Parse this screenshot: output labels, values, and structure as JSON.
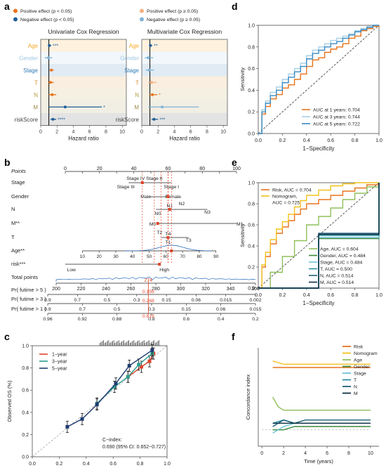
{
  "panel_letters": {
    "a": "a",
    "b": "b",
    "c": "c",
    "d": "d",
    "e": "e",
    "f": "f"
  },
  "colors": {
    "pos_sig": "#e8731c",
    "pos_ns": "#f4b183",
    "neg_sig": "#1f5f99",
    "neg_ns": "#7fb3d5",
    "age": "#f5a623",
    "gender": "#9ec7e0",
    "stage": "#2c7bb6",
    "t": "#d98c2b",
    "n": "#b59a3a",
    "m": "#a08a4a",
    "risk": "#5a5a5a",
    "red": "#e0452b",
    "teal": "#2a9d8f",
    "navy": "#1f3b73"
  },
  "panel_a": {
    "legend": [
      {
        "label": "Positive effect (p < 0.05)",
        "color": "#e8731c"
      },
      {
        "label": "Positive effect (p ≥ 0.05)",
        "color": "#f4b183"
      },
      {
        "label": "Negative effect (p < 0.05)",
        "color": "#1f5f99"
      },
      {
        "label": "Negative effect (p ≥ 0.05)",
        "color": "#7fb3d5"
      }
    ],
    "row_labels": [
      "Age",
      "Gender",
      "Stage",
      "T",
      "N",
      "M",
      "riskScore"
    ],
    "row_colors": [
      "#f5a623",
      "#9ec7e0",
      "#2c7bb6",
      "#d98c2b",
      "#b59a3a",
      "#a08a4a",
      "#444444"
    ],
    "uni_title": "Univariate Cox Regression",
    "multi_title": "Multivariate Cox Regression",
    "xlabel": "Hazard ratio",
    "xticks": [
      "0",
      "2",
      "4",
      "6",
      "8",
      "10"
    ],
    "uni": [
      {
        "hr": 1.05,
        "lo": 0.9,
        "hi": 1.3,
        "stars": "***",
        "color": "#1f5f99"
      },
      {
        "hr": 0.95,
        "lo": 0.5,
        "hi": 1.4,
        "stars": "",
        "color": "#7fb3d5"
      },
      {
        "hr": 1.3,
        "lo": 1.1,
        "hi": 1.6,
        "stars": "",
        "color": "#e8731c"
      },
      {
        "hr": 1.2,
        "lo": 0.9,
        "hi": 1.6,
        "stars": "",
        "color": "#e8731c"
      },
      {
        "hr": 1.4,
        "lo": 1.0,
        "hi": 1.9,
        "stars": "",
        "color": "#e8731c"
      },
      {
        "hr": 3.0,
        "lo": 1.0,
        "hi": 7.5,
        "stars": "*",
        "color": "#1f5f99"
      },
      {
        "hr": 1.5,
        "lo": 1.2,
        "hi": 1.9,
        "stars": "****",
        "color": "#1f5f99"
      }
    ],
    "multi": [
      {
        "hr": 1.05,
        "lo": 0.9,
        "hi": 1.3,
        "stars": "**",
        "color": "#1f5f99"
      },
      {
        "hr": 0.8,
        "lo": 0.4,
        "hi": 1.4,
        "stars": "",
        "color": "#7fb3d5"
      },
      {
        "hr": 0.9,
        "lo": 0.5,
        "hi": 1.5,
        "stars": "",
        "color": "#7fb3d5"
      },
      {
        "hr": 1.2,
        "lo": 0.8,
        "hi": 1.8,
        "stars": "",
        "color": "#f4b183"
      },
      {
        "hr": 1.3,
        "lo": 0.9,
        "hi": 1.9,
        "stars": "*",
        "color": "#e8731c"
      },
      {
        "hr": 2.5,
        "lo": 0.8,
        "hi": 7.0,
        "stars": "",
        "color": "#7fb3d5"
      },
      {
        "hr": 1.5,
        "lo": 1.2,
        "hi": 2.0,
        "stars": "***",
        "color": "#1f5f99"
      }
    ]
  },
  "panel_b": {
    "row_labels": [
      "Points",
      "Stage",
      "Gender",
      "N",
      "M**",
      "T",
      "Age**",
      "risk***",
      "Total points",
      "Pr( futime > 5 )",
      "Pr( futime > 3 )",
      "Pr( futime > 1 )"
    ],
    "points_ticks": [
      "0",
      "10",
      "20",
      "30",
      "40",
      "50",
      "60",
      "70",
      "80",
      "90",
      "100"
    ],
    "stage_labels": [
      "Stage IV",
      "Stage III",
      "Stage II",
      "Stage I"
    ],
    "gender_labels": [
      "Male",
      "Female"
    ],
    "n_labels": [
      "N0",
      "N1",
      "N2",
      "N3"
    ],
    "m_labels": [
      "M0",
      "M1"
    ],
    "t_labels": [
      "T2",
      "T4",
      "T1",
      "T3"
    ],
    "age_ticks": [
      "10",
      "20",
      "30",
      "40",
      "50",
      "60",
      "70",
      "80",
      "90"
    ],
    "risk_labels": [
      "Low",
      "High"
    ],
    "total_ticks": [
      "200",
      "220",
      "240",
      "260",
      "280",
      "300",
      "320",
      "340",
      "360"
    ],
    "total_value": "274",
    "pr5_ticks": [
      "0.9",
      "0.7",
      "0.5",
      "0.3",
      "0.15",
      "0.06",
      "0.015",
      "0.002"
    ],
    "pr3_ticks": [
      "0.9",
      "0.7",
      "0.5",
      "0.3",
      "0.15",
      "0.06",
      "0.015"
    ],
    "pr1_ticks": [
      "0.96",
      "0.92",
      "0.88",
      "0.8",
      "0.6",
      "0.4",
      "0.2"
    ],
    "pr_values": [
      "0.156",
      "0.268",
      "0.619"
    ]
  },
  "panel_c": {
    "chart_data": {
      "type": "line",
      "xlabel": "Nomogram−predicted OS (%)",
      "ylabel": "Observed OS (%)",
      "xlim": [
        0,
        1
      ],
      "ylim": [
        0,
        1
      ],
      "series": [
        {
          "name": "1−year",
          "color": "#e0452b",
          "x": [
            0.71,
            0.81,
            0.87,
            0.9
          ],
          "y": [
            0.72,
            0.81,
            0.86,
            0.93
          ]
        },
        {
          "name": "3−year",
          "color": "#2a9d8f",
          "x": [
            0.48,
            0.61,
            0.71,
            0.79,
            0.89
          ],
          "y": [
            0.48,
            0.63,
            0.72,
            0.83,
            0.93
          ]
        },
        {
          "name": "5−year",
          "color": "#1f3b73",
          "x": [
            0.26,
            0.37,
            0.48,
            0.62,
            0.72,
            0.89
          ],
          "y": [
            0.27,
            0.34,
            0.47,
            0.66,
            0.82,
            0.96
          ]
        }
      ],
      "annotation_line1": "C−index:",
      "annotation_line2": "0.690 (95% CI: 0.652−0.727)"
    }
  },
  "panel_d": {
    "chart_data": {
      "type": "line",
      "xlabel": "1−Specificity",
      "ylabel": "Sensitivity",
      "xlim": [
        0,
        1
      ],
      "ylim": [
        0,
        1
      ],
      "legend": [
        {
          "label": "AUC at 1 years: 0.704",
          "color": "#e8731c"
        },
        {
          "label": "AUC at 3 years: 0.744",
          "color": "#a6cfe6"
        },
        {
          "label": "AUC at 5 years: 0.722",
          "color": "#3b8bc2"
        }
      ],
      "series": [
        {
          "name": "AUC at 1 years: 0.704",
          "color": "#e8731c",
          "x": [
            0,
            0.03,
            0.06,
            0.1,
            0.15,
            0.2,
            0.25,
            0.3,
            0.35,
            0.4,
            0.45,
            0.5,
            0.55,
            0.6,
            0.65,
            0.7,
            0.75,
            0.8,
            0.85,
            0.9,
            0.95,
            1
          ],
          "y": [
            0,
            0.18,
            0.25,
            0.32,
            0.36,
            0.42,
            0.45,
            0.5,
            0.55,
            0.62,
            0.68,
            0.7,
            0.75,
            0.78,
            0.8,
            0.83,
            0.88,
            0.9,
            0.95,
            0.97,
            0.99,
            1
          ]
        },
        {
          "name": "AUC at 3 years: 0.744",
          "color": "#a6cfe6",
          "x": [
            0,
            0.03,
            0.06,
            0.1,
            0.15,
            0.2,
            0.25,
            0.3,
            0.35,
            0.4,
            0.45,
            0.5,
            0.55,
            0.6,
            0.65,
            0.7,
            0.75,
            0.8,
            0.85,
            0.9,
            0.95,
            1
          ],
          "y": [
            0,
            0.22,
            0.3,
            0.38,
            0.43,
            0.5,
            0.55,
            0.6,
            0.65,
            0.72,
            0.77,
            0.8,
            0.83,
            0.86,
            0.88,
            0.9,
            0.92,
            0.95,
            0.97,
            0.99,
            1,
            1
          ]
        },
        {
          "name": "AUC at 5 years: 0.722",
          "color": "#3b8bc2",
          "x": [
            0,
            0.03,
            0.06,
            0.1,
            0.15,
            0.2,
            0.25,
            0.3,
            0.35,
            0.4,
            0.45,
            0.5,
            0.55,
            0.6,
            0.65,
            0.7,
            0.75,
            0.8,
            0.85,
            0.9,
            0.95,
            1
          ],
          "y": [
            0,
            0.2,
            0.28,
            0.35,
            0.4,
            0.47,
            0.52,
            0.57,
            0.62,
            0.69,
            0.74,
            0.77,
            0.8,
            0.83,
            0.85,
            0.88,
            0.91,
            0.94,
            0.96,
            0.98,
            1,
            1
          ]
        }
      ]
    }
  },
  "panel_e": {
    "chart_data": {
      "type": "line",
      "xlabel": "1−Specificity",
      "ylabel": "Sensitivity",
      "xlim": [
        0,
        1
      ],
      "ylim": [
        0,
        1
      ],
      "legend_top": [
        {
          "label": "Risk, AUC = 0.704",
          "color": "#e8731c"
        },
        {
          "label": "Nomogram,",
          "color": "#f2c11d"
        },
        {
          "label": "AUC = 0.725",
          "color": ""
        }
      ],
      "legend_bottom": [
        {
          "label": "Age, AUC = 0.604",
          "color": "#8fbf5a"
        },
        {
          "label": "Gender, AUC = 0.484",
          "color": "#3d8b3d"
        },
        {
          "label": "Stage, AUC = 0.484",
          "color": "#6cc3d5"
        },
        {
          "label": "T, AUC = 0.500",
          "color": "#2a8fa6"
        },
        {
          "label": "N, AUC = 0.514",
          "color": "#1f5f78"
        },
        {
          "label": "M, AUC = 0.514",
          "color": "#0e2f44"
        }
      ],
      "series": [
        {
          "name": "Risk",
          "color": "#e8731c",
          "x": [
            0,
            0.03,
            0.06,
            0.1,
            0.15,
            0.2,
            0.25,
            0.3,
            0.35,
            0.4,
            0.5,
            0.6,
            0.7,
            0.8,
            0.9,
            1
          ],
          "y": [
            0,
            0.2,
            0.3,
            0.42,
            0.52,
            0.58,
            0.64,
            0.7,
            0.75,
            0.8,
            0.84,
            0.88,
            0.92,
            0.95,
            0.98,
            1
          ]
        },
        {
          "name": "Nomogram",
          "color": "#f2c11d",
          "x": [
            0,
            0.03,
            0.06,
            0.1,
            0.15,
            0.2,
            0.25,
            0.3,
            0.35,
            0.4,
            0.5,
            0.6,
            0.7,
            0.8,
            0.9,
            1
          ],
          "y": [
            0,
            0.22,
            0.34,
            0.46,
            0.56,
            0.63,
            0.7,
            0.77,
            0.83,
            0.88,
            0.93,
            0.97,
            0.99,
            1,
            1,
            1
          ]
        },
        {
          "name": "Age",
          "color": "#8fbf5a",
          "x": [
            0,
            0.1,
            0.2,
            0.3,
            0.4,
            0.5,
            0.6,
            0.7,
            0.8,
            0.9,
            1
          ],
          "y": [
            0,
            0.15,
            0.3,
            0.45,
            0.6,
            0.68,
            0.76,
            0.84,
            0.9,
            0.96,
            1
          ]
        },
        {
          "name": "Gender",
          "color": "#3d8b3d",
          "x": [
            0,
            0.5,
            1
          ],
          "y": [
            0,
            0.47,
            1
          ]
        },
        {
          "name": "Stage",
          "color": "#6cc3d5",
          "x": [
            0,
            0.5,
            1
          ],
          "y": [
            0,
            0.48,
            1
          ]
        },
        {
          "name": "T",
          "color": "#2a8fa6",
          "x": [
            0,
            0.5,
            1
          ],
          "y": [
            0,
            0.5,
            1
          ]
        },
        {
          "name": "N",
          "color": "#1f5f78",
          "x": [
            0,
            0.5,
            1
          ],
          "y": [
            0,
            0.52,
            1
          ]
        },
        {
          "name": "M",
          "color": "#0e2f44",
          "x": [
            0,
            0.5,
            1
          ],
          "y": [
            0,
            0.51,
            1
          ]
        }
      ]
    }
  },
  "panel_f": {
    "chart_data": {
      "type": "line",
      "xlabel": "Time (years)",
      "ylabel": "Concordance index",
      "xlim": [
        0,
        10
      ],
      "ylim": [
        0.45,
        0.75
      ],
      "series": [
        {
          "name": "Risk",
          "color": "#e8731c",
          "x": [
            1,
            2,
            3,
            4,
            5,
            6,
            7,
            8,
            9,
            10
          ],
          "y": [
            0.69,
            0.69,
            0.69,
            0.69,
            0.69,
            0.69,
            0.69,
            0.69,
            0.69,
            0.69
          ]
        },
        {
          "name": "Nomogram",
          "color": "#f2c11d",
          "x": [
            1,
            2,
            3,
            4,
            5,
            6,
            7,
            8,
            9,
            10
          ],
          "y": [
            0.71,
            0.7,
            0.7,
            0.7,
            0.7,
            0.7,
            0.7,
            0.7,
            0.7,
            0.7
          ]
        },
        {
          "name": "Age",
          "color": "#8fbf5a",
          "x": [
            1,
            1.5,
            2,
            3,
            4,
            5,
            6,
            7,
            8,
            9,
            10
          ],
          "y": [
            0.6,
            0.57,
            0.56,
            0.56,
            0.56,
            0.56,
            0.56,
            0.56,
            0.56,
            0.56,
            0.56
          ]
        },
        {
          "name": "Gender",
          "color": "#3d8b3d",
          "x": [
            1,
            2,
            3,
            4,
            5,
            6,
            7,
            8,
            9,
            10
          ],
          "y": [
            0.5,
            0.5,
            0.51,
            0.51,
            0.51,
            0.51,
            0.51,
            0.51,
            0.51,
            0.51
          ]
        },
        {
          "name": "Stage",
          "color": "#6cc3d5",
          "x": [
            1,
            2,
            3,
            4,
            5,
            6,
            7,
            8,
            9,
            10
          ],
          "y": [
            0.49,
            0.51,
            0.52,
            0.52,
            0.52,
            0.52,
            0.52,
            0.52,
            0.52,
            0.52
          ]
        },
        {
          "name": "T",
          "color": "#2a8fa6",
          "x": [
            1,
            2,
            3,
            4,
            5,
            6,
            7,
            8,
            9,
            10
          ],
          "y": [
            0.52,
            0.53,
            0.52,
            0.52,
            0.52,
            0.52,
            0.52,
            0.52,
            0.52,
            0.52
          ]
        },
        {
          "name": "N",
          "color": "#1f5f78",
          "x": [
            1,
            2,
            3,
            4,
            5,
            6,
            7,
            8,
            9,
            10
          ],
          "y": [
            0.51,
            0.53,
            0.52,
            0.53,
            0.53,
            0.53,
            0.53,
            0.53,
            0.53,
            0.53
          ]
        },
        {
          "name": "M",
          "color": "#0e2f44",
          "x": [
            1,
            2,
            3,
            4,
            5,
            6,
            7,
            8,
            9,
            10
          ],
          "y": [
            0.52,
            0.52,
            0.52,
            0.52,
            0.52,
            0.52,
            0.52,
            0.52,
            0.52,
            0.52
          ]
        }
      ]
    }
  }
}
